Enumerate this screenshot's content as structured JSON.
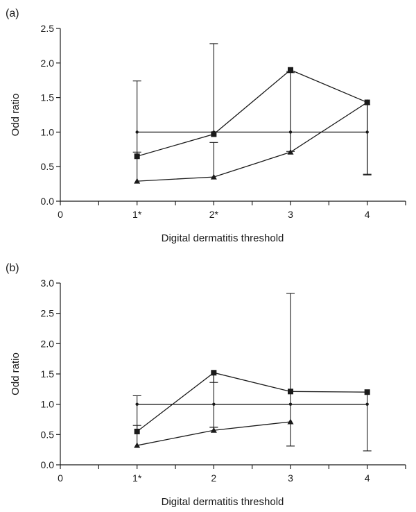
{
  "chart_data": [
    {
      "panel_label": "(a)",
      "type": "line",
      "xlabel": "Digital dermatitis threshold",
      "ylabel": "Odd ratio",
      "x_ticks": [
        {
          "x": 0,
          "label": "0"
        },
        {
          "x": 1,
          "label": "1*"
        },
        {
          "x": 2,
          "label": "2*"
        },
        {
          "x": 3,
          "label": "3"
        },
        {
          "x": 4,
          "label": "4"
        }
      ],
      "y_ticks": [
        "0.0",
        "0.5",
        "1.0",
        "1.5",
        "2.0",
        "2.5"
      ],
      "xlim": [
        0,
        4.5
      ],
      "ylim": [
        0,
        2.5
      ],
      "series": [
        {
          "marker": "circle",
          "x": [
            1,
            2,
            3,
            4
          ],
          "values": [
            1.0,
            1.0,
            1.0,
            1.0
          ]
        },
        {
          "marker": "square",
          "x": [
            1,
            2,
            3,
            4
          ],
          "values": [
            0.65,
            0.97,
            1.9,
            1.43
          ],
          "error_upper": [
            1.74,
            2.28,
            1.88,
            1.43
          ],
          "error_lower": [
            null,
            null,
            0.72,
            0.38
          ]
        },
        {
          "marker": "triangle",
          "x": [
            1,
            2,
            3,
            4
          ],
          "values": [
            0.29,
            0.35,
            0.71,
            1.43
          ],
          "error_upper": [
            0.71,
            0.85,
            1.86,
            1.43
          ],
          "error_lower": [
            null,
            null,
            null,
            0.39
          ]
        }
      ]
    },
    {
      "panel_label": "(b)",
      "type": "line",
      "xlabel": "Digital dermatitis threshold",
      "ylabel": "Odd ratio",
      "x_ticks": [
        {
          "x": 0,
          "label": "0"
        },
        {
          "x": 1,
          "label": "1*"
        },
        {
          "x": 2,
          "label": "2"
        },
        {
          "x": 3,
          "label": "3"
        },
        {
          "x": 4,
          "label": "4"
        }
      ],
      "y_ticks": [
        "0.0",
        "0.5",
        "1.0",
        "1.5",
        "2.0",
        "2.5",
        "3.0"
      ],
      "xlim": [
        0,
        4.5
      ],
      "ylim": [
        0,
        3.0
      ],
      "series": [
        {
          "marker": "circle",
          "x": [
            1,
            2,
            3,
            4
          ],
          "values": [
            1.0,
            1.0,
            1.0,
            1.0
          ]
        },
        {
          "marker": "square",
          "x": [
            1,
            2,
            3,
            4
          ],
          "values": [
            0.55,
            1.52,
            1.21,
            1.2
          ],
          "error_upper": [
            1.14,
            1.36,
            2.83,
            1.2
          ],
          "error_lower": [
            null,
            0.62,
            0.31,
            0.23
          ]
        },
        {
          "marker": "triangle",
          "x": [
            1,
            2,
            3,
            4
          ],
          "values": [
            0.32,
            0.57,
            0.71,
            null
          ],
          "error_upper": [
            0.65,
            0.62,
            0.71,
            null
          ],
          "error_lower": [
            null,
            null,
            null,
            null
          ]
        }
      ]
    }
  ]
}
